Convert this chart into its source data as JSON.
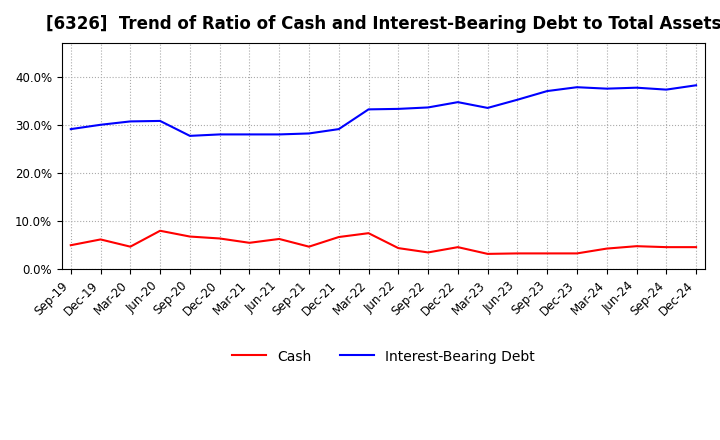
{
  "title": "[6326]  Trend of Ratio of Cash and Interest-Bearing Debt to Total Assets",
  "x_labels": [
    "Sep-19",
    "Dec-19",
    "Mar-20",
    "Jun-20",
    "Sep-20",
    "Dec-20",
    "Mar-21",
    "Jun-21",
    "Sep-21",
    "Dec-21",
    "Mar-22",
    "Jun-22",
    "Sep-22",
    "Dec-22",
    "Mar-23",
    "Jun-23",
    "Sep-23",
    "Dec-23",
    "Mar-24",
    "Jun-24",
    "Sep-24",
    "Dec-24"
  ],
  "cash": [
    0.05,
    0.062,
    0.047,
    0.08,
    0.068,
    0.064,
    0.055,
    0.063,
    0.047,
    0.067,
    0.075,
    0.044,
    0.035,
    0.046,
    0.032,
    0.033,
    0.033,
    0.033,
    0.043,
    0.048,
    0.046,
    0.046
  ],
  "interest_bearing_debt": [
    0.291,
    0.3,
    0.307,
    0.308,
    0.277,
    0.28,
    0.28,
    0.28,
    0.282,
    0.291,
    0.332,
    0.333,
    0.336,
    0.347,
    0.335,
    0.352,
    0.37,
    0.378,
    0.375,
    0.377,
    0.373,
    0.382
  ],
  "cash_color": "#ff0000",
  "debt_color": "#0000ff",
  "background_color": "#ffffff",
  "plot_bg_color": "#ffffff",
  "grid_color": "#aaaaaa",
  "ylim": [
    0.0,
    0.47
  ],
  "yticks": [
    0.0,
    0.1,
    0.2,
    0.3,
    0.4
  ],
  "legend_cash": "Cash",
  "legend_debt": "Interest-Bearing Debt",
  "title_fontsize": 12,
  "tick_fontsize": 8.5,
  "legend_fontsize": 10
}
